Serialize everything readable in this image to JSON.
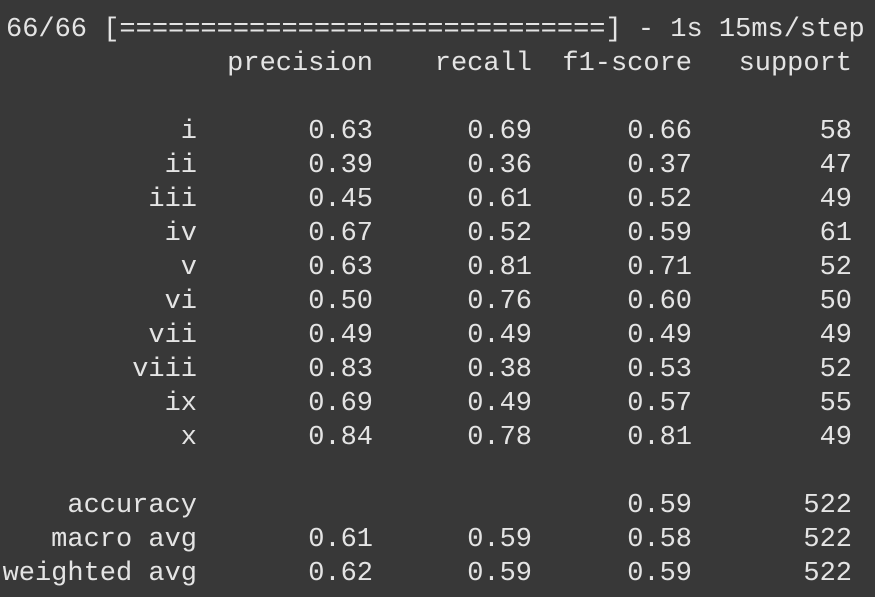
{
  "progress": "66/66 [==============================] - 1s 15ms/step",
  "report": {
    "columns": [
      "precision",
      "recall",
      "f1-score",
      "support"
    ],
    "rows": [
      {
        "label": "i",
        "precision": "0.63",
        "recall": "0.69",
        "f1": "0.66",
        "support": "58"
      },
      {
        "label": "ii",
        "precision": "0.39",
        "recall": "0.36",
        "f1": "0.37",
        "support": "47"
      },
      {
        "label": "iii",
        "precision": "0.45",
        "recall": "0.61",
        "f1": "0.52",
        "support": "49"
      },
      {
        "label": "iv",
        "precision": "0.67",
        "recall": "0.52",
        "f1": "0.59",
        "support": "61"
      },
      {
        "label": "v",
        "precision": "0.63",
        "recall": "0.81",
        "f1": "0.71",
        "support": "52"
      },
      {
        "label": "vi",
        "precision": "0.50",
        "recall": "0.76",
        "f1": "0.60",
        "support": "50"
      },
      {
        "label": "vii",
        "precision": "0.49",
        "recall": "0.49",
        "f1": "0.49",
        "support": "49"
      },
      {
        "label": "viii",
        "precision": "0.83",
        "recall": "0.38",
        "f1": "0.53",
        "support": "52"
      },
      {
        "label": "ix",
        "precision": "0.69",
        "recall": "0.49",
        "f1": "0.57",
        "support": "55"
      },
      {
        "label": "x",
        "precision": "0.84",
        "recall": "0.78",
        "f1": "0.81",
        "support": "49"
      }
    ],
    "summary": [
      {
        "label": "accuracy",
        "f1": "0.59",
        "support": "522"
      },
      {
        "label": "macro avg",
        "precision": "0.61",
        "recall": "0.59",
        "f1": "0.58",
        "support": "522"
      },
      {
        "label": "weighted avg",
        "precision": "0.62",
        "recall": "0.59",
        "f1": "0.59",
        "support": "522"
      }
    ]
  }
}
